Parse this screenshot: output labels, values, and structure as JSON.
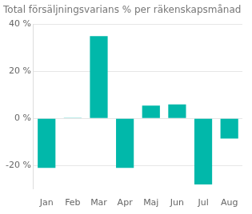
{
  "chart_data": {
    "type": "bar",
    "title": "Total försäljningsvarians % per räkenskapsmånad",
    "categories": [
      "Jan",
      "Feb",
      "Mar",
      "Apr",
      "Maj",
      "Jun",
      "Jul",
      "Aug"
    ],
    "values": [
      -21,
      0.3,
      35,
      -21,
      5.5,
      6,
      -28,
      -8.5
    ],
    "color": "#01B8AA",
    "ylim": [
      -30,
      40
    ],
    "yticks": [
      {
        "value": -20,
        "label": "-20 %"
      },
      {
        "value": 0,
        "label": "0 %"
      },
      {
        "value": 20,
        "label": "20 %"
      },
      {
        "value": 40,
        "label": "40 %"
      }
    ],
    "grid": true
  }
}
